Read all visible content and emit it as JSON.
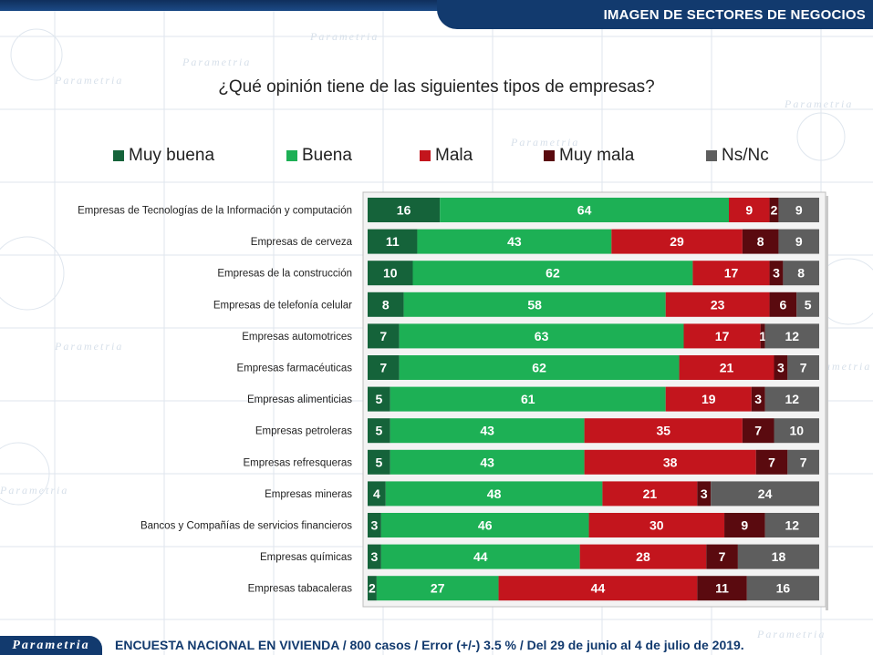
{
  "header": {
    "title": "IMAGEN DE SECTORES DE NEGOCIOS"
  },
  "footer": {
    "brand": "Parametria",
    "note": "ENCUESTA NACIONAL EN VIVIENDA / 800 casos / Error (+/-) 3.5 % / Del 29 de junio al 4 de julio de 2019."
  },
  "watermark": {
    "text": "Parametria"
  },
  "chart_data": {
    "type": "bar",
    "orientation": "horizontal",
    "stacked": true,
    "title": "¿Qué opinión tiene de las siguientes tipos de empresas?",
    "legend_position": "top",
    "categories": [
      "Empresas de Tecnologías de la Información y computación",
      "Empresas de cerveza",
      "Empresas de la construcción",
      "Empresas de telefonía celular",
      "Empresas automotrices",
      "Empresas farmacéuticas",
      "Empresas alimenticias",
      "Empresas petroleras",
      "Empresas refresqueras",
      "Empresas mineras",
      "Bancos y Compañías de servicios financieros",
      "Empresas químicas",
      "Empresas tabacaleras"
    ],
    "series": [
      {
        "name": "Muy buena",
        "color": "#15633a",
        "values": [
          16,
          11,
          10,
          8,
          7,
          7,
          5,
          5,
          5,
          4,
          3,
          3,
          2
        ]
      },
      {
        "name": "Buena",
        "color": "#1db055",
        "values": [
          64,
          43,
          62,
          58,
          63,
          62,
          61,
          43,
          43,
          48,
          46,
          44,
          27
        ]
      },
      {
        "name": "Mala",
        "color": "#c3151d",
        "values": [
          9,
          29,
          17,
          23,
          17,
          21,
          19,
          35,
          38,
          21,
          30,
          28,
          44
        ]
      },
      {
        "name": "Muy mala",
        "color": "#5a0a0f",
        "values": [
          2,
          8,
          3,
          6,
          1,
          3,
          3,
          7,
          7,
          3,
          9,
          7,
          11
        ]
      },
      {
        "name": "Ns/Nc",
        "color": "#5e5e5e",
        "values": [
          9,
          9,
          8,
          5,
          12,
          7,
          12,
          10,
          7,
          24,
          12,
          18,
          16
        ]
      }
    ],
    "grid": false
  }
}
